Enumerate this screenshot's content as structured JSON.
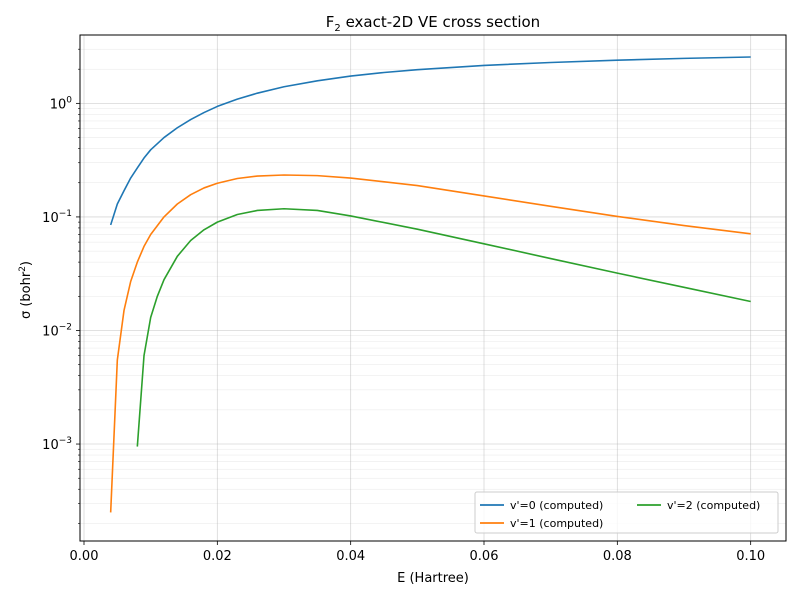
{
  "chart_data": {
    "type": "line",
    "title_main": "F",
    "title_sub": "2",
    "title_rest": " exact-2D VE cross section",
    "xlabel": "E (Hartree)",
    "ylabel_prefix": "σ (bohr",
    "ylabel_sup": "2",
    "ylabel_suffix": ")",
    "xlim": [
      -0.0006,
      0.1053
    ],
    "ylim": [
      0.00014,
      4.0
    ],
    "yscale": "log",
    "grid": true,
    "legend_position": "lower-right",
    "x_ticks": [
      {
        "value": 0.0,
        "label": "0.00"
      },
      {
        "value": 0.02,
        "label": "0.02"
      },
      {
        "value": 0.04,
        "label": "0.04"
      },
      {
        "value": 0.06,
        "label": "0.06"
      },
      {
        "value": 0.08,
        "label": "0.08"
      },
      {
        "value": 0.1,
        "label": "0.10"
      }
    ],
    "y_ticks": [
      {
        "value": 0.001,
        "base": "10",
        "exp": "−3"
      },
      {
        "value": 0.01,
        "base": "10",
        "exp": "−2"
      },
      {
        "value": 0.1,
        "base": "10",
        "exp": "−1"
      },
      {
        "value": 1,
        "base": "10",
        "exp": "0"
      }
    ],
    "series": [
      {
        "name": "v'=0 (computed)",
        "color": "#1f77b4",
        "x": [
          0.004,
          0.005,
          0.006,
          0.007,
          0.008,
          0.009,
          0.01,
          0.012,
          0.014,
          0.016,
          0.018,
          0.02,
          0.023,
          0.026,
          0.03,
          0.035,
          0.04,
          0.045,
          0.05,
          0.06,
          0.07,
          0.08,
          0.09,
          0.1
        ],
        "y": [
          0.085,
          0.13,
          0.17,
          0.22,
          0.27,
          0.33,
          0.39,
          0.5,
          0.61,
          0.72,
          0.83,
          0.94,
          1.09,
          1.23,
          1.4,
          1.58,
          1.74,
          1.87,
          1.98,
          2.16,
          2.29,
          2.4,
          2.49,
          2.56
        ]
      },
      {
        "name": "v'=1 (computed)",
        "color": "#ff7f0e",
        "x": [
          0.004,
          0.005,
          0.006,
          0.007,
          0.008,
          0.009,
          0.01,
          0.012,
          0.014,
          0.016,
          0.018,
          0.02,
          0.023,
          0.026,
          0.03,
          0.035,
          0.04,
          0.05,
          0.06,
          0.07,
          0.08,
          0.09,
          0.1
        ],
        "y": [
          0.00025,
          0.0055,
          0.015,
          0.027,
          0.04,
          0.055,
          0.07,
          0.1,
          0.13,
          0.157,
          0.18,
          0.198,
          0.218,
          0.229,
          0.234,
          0.231,
          0.22,
          0.189,
          0.153,
          0.124,
          0.101,
          0.084,
          0.071
        ]
      },
      {
        "name": "v'=2 (computed)",
        "color": "#2ca02c",
        "x": [
          0.008,
          0.009,
          0.01,
          0.011,
          0.012,
          0.014,
          0.016,
          0.018,
          0.02,
          0.023,
          0.026,
          0.03,
          0.035,
          0.04,
          0.05,
          0.06,
          0.07,
          0.08,
          0.09,
          0.1
        ],
        "y": [
          0.00095,
          0.006,
          0.013,
          0.02,
          0.028,
          0.045,
          0.062,
          0.077,
          0.09,
          0.105,
          0.114,
          0.118,
          0.114,
          0.102,
          0.078,
          0.058,
          0.043,
          0.032,
          0.024,
          0.018
        ]
      }
    ]
  }
}
